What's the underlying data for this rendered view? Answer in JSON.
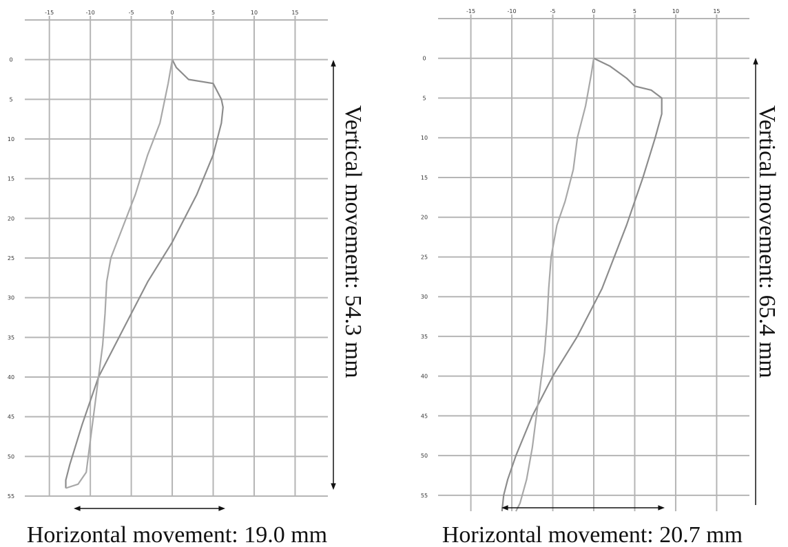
{
  "colors": {
    "grid": "#b5b5b5",
    "seriesA": "#8c8c8c",
    "seriesB": "#a8a8a8",
    "arrow": "#111111"
  },
  "chart_data": [
    {
      "type": "line",
      "x_ticks": [
        -15,
        -10,
        -5,
        0,
        5,
        10,
        15
      ],
      "y_ticks": [
        0,
        5,
        10,
        15,
        20,
        25,
        30,
        35,
        40,
        45,
        50,
        55
      ],
      "xlim": [
        -18,
        19
      ],
      "ylim": [
        -5,
        55
      ],
      "grid": true,
      "vertical_label": "Vertical movement: 54.3 mm",
      "horizontal_label": "Horizontal movement: 19.0 mm",
      "series": [
        {
          "x": [
            0,
            0.5,
            2,
            5,
            6,
            6.2,
            6,
            5,
            3,
            0,
            -3,
            -6,
            -9,
            -11,
            -12.5,
            -13,
            -13
          ],
          "y": [
            0,
            1,
            2.5,
            3,
            5,
            6,
            8,
            12,
            17,
            23,
            28,
            34,
            40,
            46,
            51,
            53,
            54
          ]
        },
        {
          "x": [
            0,
            -0.5,
            -1.5,
            -3,
            -4.5,
            -6,
            -7.5,
            -8,
            -8.2,
            -8.5,
            -9,
            -9.5,
            -10,
            -10.5,
            -11.5,
            -13
          ],
          "y": [
            0,
            3,
            8,
            12,
            17,
            21,
            25,
            28,
            32,
            36,
            40,
            44,
            48,
            52,
            53.5,
            54
          ]
        }
      ]
    },
    {
      "type": "line",
      "x_ticks": [
        -15,
        -10,
        -5,
        0,
        5,
        10,
        15
      ],
      "y_ticks": [
        0,
        5,
        10,
        15,
        20,
        25,
        30,
        35,
        40,
        45,
        50,
        55
      ],
      "xlim": [
        -19,
        19
      ],
      "ylim": [
        -5,
        57
      ],
      "grid": true,
      "vertical_label": "Vertical movement: 65.4 mm",
      "horizontal_label": "Horizontal movement: 20.7 mm",
      "series": [
        {
          "x": [
            0,
            2,
            4,
            5,
            7,
            8.3,
            8.3,
            7.5,
            6,
            4,
            1,
            -2,
            -5,
            -7.5,
            -9.5,
            -10.5,
            -11,
            -11.2
          ],
          "y": [
            0,
            1,
            2.5,
            3.5,
            4,
            5,
            7,
            10,
            15,
            21,
            29,
            35,
            40,
            45,
            50,
            53,
            55,
            57
          ]
        },
        {
          "x": [
            0,
            -0.3,
            -1,
            -2,
            -2.5,
            -3.5,
            -4.5,
            -5.2,
            -5.5,
            -5.7,
            -6,
            -6.5,
            -7,
            -7.5,
            -8.2,
            -9,
            -9.5
          ],
          "y": [
            0,
            2,
            6,
            10,
            14,
            18,
            21,
            25,
            29,
            33,
            37,
            41,
            45,
            49,
            53,
            56,
            57
          ]
        }
      ]
    }
  ]
}
